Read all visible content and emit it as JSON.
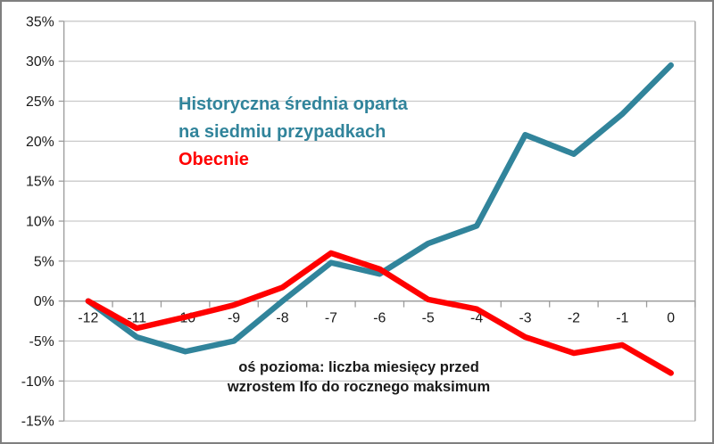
{
  "chart_data": {
    "type": "line",
    "x": [
      "-12",
      "-11",
      "-10",
      "-9",
      "-8",
      "-7",
      "-6",
      "-5",
      "-4",
      "-3",
      "-2",
      "-1",
      "0"
    ],
    "series": [
      {
        "name": "Historyczna średnia oparta na siedmiu przypadkach",
        "color": "#31849B",
        "values": [
          0,
          -4.5,
          -6.3,
          -5,
          0,
          4.8,
          3.4,
          7.2,
          9.4,
          20.8,
          18.4,
          23.4,
          29.5
        ]
      },
      {
        "name": "Obecnie",
        "color": "#FF0000",
        "values": [
          0,
          -3.4,
          -2,
          -0.5,
          1.7,
          6,
          4,
          0.2,
          -1,
          -4.5,
          -6.5,
          -5.5,
          -9
        ]
      }
    ],
    "title": "",
    "xlabel": "",
    "ylabel": "",
    "ylim": [
      -15,
      35
    ],
    "ytick_step": 5,
    "ytick_suffix": "%",
    "grid": true,
    "legend": {
      "position": "inside-top-left",
      "entries": [
        {
          "lines": [
            "Historyczna średnia oparta",
            "na siedmiu przypadkach"
          ],
          "color": "#31849B"
        },
        {
          "lines": [
            "Obecnie"
          ],
          "color": "#FF0000"
        }
      ]
    },
    "annotation": {
      "lines": [
        "oś pozioma: liczba miesięcy przed",
        "wzrostem Ifo do rocznego maksimum"
      ]
    }
  },
  "colors": {
    "gridline": "#C9C9C9",
    "axis": "#9B9B9B",
    "frame_border": "#7F7F7F",
    "label_text": "#1A1A1A"
  }
}
